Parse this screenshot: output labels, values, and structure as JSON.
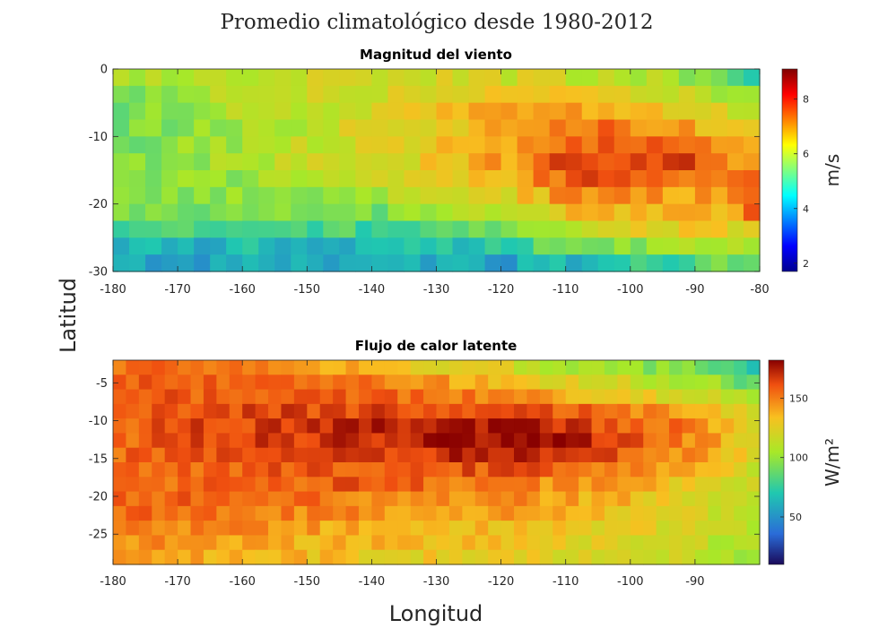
{
  "figure": {
    "title": "Promedio climatológico desde 1980-2012",
    "xlabel": "Longitud",
    "ylabel": "Latitud"
  },
  "chart_data": [
    {
      "type": "heatmap",
      "title": "Magnitud del viento",
      "xlim": [
        -180,
        -80
      ],
      "ylim": [
        -30,
        0
      ],
      "xticks": [
        "-180",
        "-170",
        "-160",
        "-150",
        "-140",
        "-130",
        "-120",
        "-110",
        "-100",
        "-90",
        "-80"
      ],
      "yticks": [
        "0",
        "-10",
        "-20",
        "-30"
      ],
      "grid_resolution_deg": 2.5,
      "colormap": "jet",
      "colorbar": {
        "label": "m/s",
        "range": [
          1.7,
          9.1
        ],
        "ticks": [
          "2",
          "4",
          "6",
          "8"
        ]
      },
      "lon_bands": [
        -180,
        -160,
        -140,
        -120,
        -110,
        -100,
        -90,
        -85,
        -80
      ],
      "lat_rows": [
        0,
        -2.5,
        -5,
        -7.5,
        -10,
        -12.5,
        -15,
        -17.5,
        -20,
        -22.5,
        -25,
        -27.5,
        -30
      ],
      "values": [
        [
          5.8,
          6.0,
          6.2,
          6.3,
          6.1,
          5.9,
          5.5,
          4.8,
          4.5
        ],
        [
          5.6,
          6.0,
          6.4,
          6.5,
          6.4,
          6.2,
          5.8,
          5.2,
          4.8
        ],
        [
          5.2,
          5.9,
          6.5,
          6.9,
          7.1,
          6.8,
          6.4,
          6.0,
          5.5
        ],
        [
          5.0,
          5.8,
          6.4,
          7.3,
          7.6,
          7.4,
          7.0,
          6.6,
          6.2
        ],
        [
          5.0,
          5.8,
          6.4,
          7.4,
          8.0,
          8.1,
          7.6,
          7.0,
          6.8
        ],
        [
          5.1,
          5.8,
          6.4,
          7.4,
          8.2,
          8.4,
          8.0,
          7.3,
          7.4
        ],
        [
          5.2,
          5.8,
          6.3,
          7.2,
          8.3,
          8.6,
          8.3,
          7.6,
          7.8
        ],
        [
          5.4,
          5.6,
          6.0,
          6.8,
          7.8,
          7.9,
          7.6,
          7.4,
          7.6
        ],
        [
          5.6,
          5.4,
          5.6,
          6.2,
          7.2,
          7.2,
          7.0,
          7.2,
          7.6
        ],
        [
          5.2,
          5.0,
          5.0,
          5.6,
          6.6,
          6.8,
          6.9,
          7.0,
          8.6
        ],
        [
          4.2,
          4.3,
          4.4,
          5.0,
          5.8,
          6.2,
          6.4,
          6.2,
          6.0
        ],
        [
          3.8,
          3.8,
          3.8,
          4.0,
          4.5,
          4.9,
          5.1,
          5.2,
          5.4
        ],
        [
          3.7,
          3.6,
          3.5,
          3.4,
          3.5,
          3.9,
          4.2,
          5.4,
          5.6
        ]
      ]
    },
    {
      "type": "heatmap",
      "title": "Flujo de calor latente",
      "xlim": [
        -180,
        -80
      ],
      "ylim": [
        -29,
        -2
      ],
      "xticks": [
        "-180",
        "-170",
        "-160",
        "-150",
        "-140",
        "-130",
        "-120",
        "-110",
        "-100",
        "-90"
      ],
      "yticks": [
        "-5",
        "-10",
        "-15",
        "-20",
        "-25"
      ],
      "grid_resolution_deg": 2.0,
      "colormap": "jet",
      "colorbar": {
        "label": "W/m²",
        "range": [
          10,
          182
        ],
        "ticks": [
          "50",
          "100",
          "150"
        ]
      },
      "lon_bands": [
        -180,
        -160,
        -140,
        -120,
        -110,
        -100,
        -90,
        -85,
        -80
      ],
      "lat_rows": [
        -3,
        -5,
        -7,
        -9,
        -11,
        -13,
        -15,
        -17,
        -19,
        -21,
        -23,
        -25,
        -27,
        -29
      ],
      "values": [
        [
          155,
          150,
          140,
          120,
          110,
          100,
          95,
          85,
          60
        ],
        [
          158,
          155,
          150,
          135,
          125,
          115,
          105,
          100,
          80
        ],
        [
          160,
          158,
          158,
          150,
          140,
          130,
          120,
          110,
          95
        ],
        [
          160,
          162,
          165,
          165,
          158,
          150,
          140,
          125,
          110
        ],
        [
          158,
          165,
          172,
          175,
          168,
          158,
          150,
          135,
          120
        ],
        [
          156,
          165,
          170,
          178,
          175,
          160,
          148,
          135,
          122
        ],
        [
          154,
          160,
          168,
          172,
          170,
          155,
          142,
          130,
          120
        ],
        [
          155,
          158,
          162,
          160,
          158,
          150,
          138,
          125,
          118
        ],
        [
          156,
          156,
          158,
          150,
          145,
          138,
          128,
          118,
          115
        ],
        [
          158,
          155,
          150,
          148,
          140,
          135,
          125,
          115,
          112
        ],
        [
          156,
          152,
          145,
          142,
          138,
          130,
          122,
          112,
          110
        ],
        [
          152,
          145,
          138,
          135,
          130,
          124,
          118,
          110,
          108
        ],
        [
          148,
          140,
          135,
          130,
          125,
          120,
          114,
          108,
          106
        ],
        [
          145,
          138,
          130,
          126,
          122,
          118,
          112,
          108,
          105
        ]
      ]
    }
  ]
}
